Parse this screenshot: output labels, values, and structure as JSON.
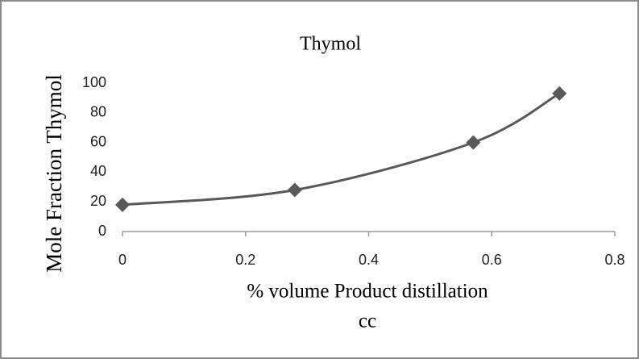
{
  "chart_data": {
    "type": "scatter",
    "title": "Thymol",
    "xlabel": [
      "% volume Product distillation",
      "cc"
    ],
    "ylabel": "Mole Fraction Thymol",
    "series": [
      {
        "name": "Thymol",
        "color": "#595959",
        "x": [
          0,
          0.28,
          0.57,
          0.71
        ],
        "values": [
          18,
          28,
          60,
          93
        ]
      }
    ],
    "xlim": [
      0,
      0.8
    ],
    "xticks": [
      0,
      0.2,
      0.4,
      0.6,
      0.8
    ],
    "ylim": [
      0,
      100
    ],
    "yticks": [
      0,
      20,
      40,
      60,
      80,
      100
    ],
    "smooth": true,
    "grid": false
  }
}
